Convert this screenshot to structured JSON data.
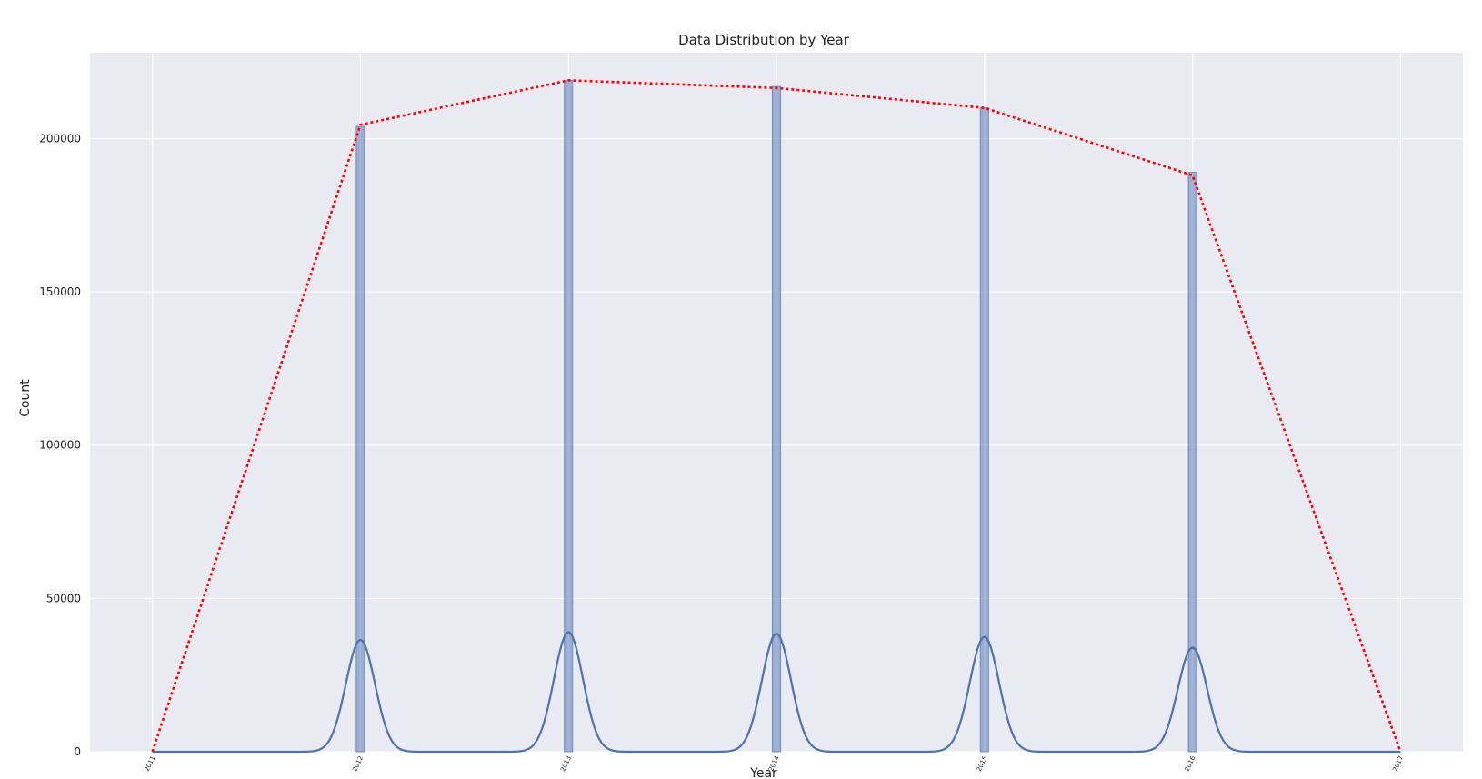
{
  "chart_data": {
    "type": "bar",
    "title": "Data Distribution by Year",
    "xlabel": "Year",
    "ylabel": "Count",
    "x_ticks": [
      "2011",
      "2012",
      "2013",
      "2014",
      "2015",
      "2016",
      "2017"
    ],
    "y_ticks": [
      "0",
      "50000",
      "100000",
      "150000",
      "200000"
    ],
    "xlim": [
      2010.7,
      2017.3
    ],
    "ylim": [
      0,
      228000
    ],
    "grid": true,
    "background": "#eaeaf2",
    "series": [
      {
        "type": "bar",
        "x": [
          2012,
          2013,
          2014,
          2015,
          2016
        ],
        "values": [
          204000,
          219000,
          217000,
          210000,
          189000
        ],
        "color": "#4c72b0"
      },
      {
        "type": "line",
        "style": "dotted",
        "color": "#ff0000",
        "x": [
          2011,
          2012,
          2013,
          2014,
          2015,
          2016,
          2017
        ],
        "values": [
          0,
          204500,
          219000,
          216500,
          210000,
          188000,
          0
        ]
      },
      {
        "type": "kde",
        "color": "#4c72b0",
        "x": [
          2012,
          2013,
          2014,
          2015,
          2016
        ],
        "peaks": [
          36500,
          39000,
          38500,
          37500,
          34000
        ]
      }
    ]
  }
}
